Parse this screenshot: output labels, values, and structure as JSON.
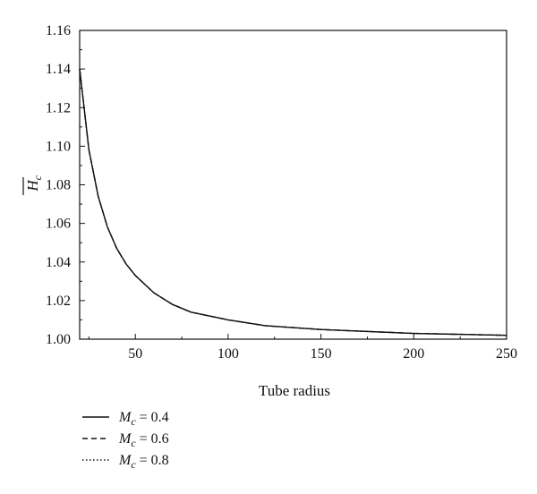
{
  "chart_data": {
    "type": "line",
    "xlabel": "Tube radius",
    "ylabel": "H",
    "ylabel_subscript": "c",
    "xlim": [
      20,
      250
    ],
    "ylim": [
      1.0,
      1.16
    ],
    "xticks": [
      50,
      100,
      150,
      200,
      250
    ],
    "yticks": [
      1.0,
      1.02,
      1.04,
      1.06,
      1.08,
      1.1,
      1.12,
      1.14,
      1.16
    ],
    "x": [
      20,
      25,
      30,
      35,
      40,
      45,
      50,
      60,
      70,
      80,
      90,
      100,
      120,
      150,
      175,
      200,
      225,
      250
    ],
    "series": [
      {
        "name_var": "M",
        "name_sub": "c",
        "name_rest": " = 0.4",
        "style": "solid",
        "values": [
          1.14,
          1.098,
          1.074,
          1.058,
          1.047,
          1.039,
          1.033,
          1.024,
          1.018,
          1.014,
          1.012,
          1.01,
          1.007,
          1.005,
          1.004,
          1.003,
          1.0025,
          1.002
        ]
      },
      {
        "name_var": "M",
        "name_sub": "c",
        "name_rest": " = 0.6",
        "style": "dashed",
        "values": [
          1.14,
          1.098,
          1.074,
          1.058,
          1.047,
          1.039,
          1.033,
          1.024,
          1.018,
          1.014,
          1.012,
          1.01,
          1.007,
          1.005,
          1.004,
          1.003,
          1.0025,
          1.002
        ]
      },
      {
        "name_var": "M",
        "name_sub": "c",
        "name_rest": " = 0.8",
        "style": "dotted",
        "values": [
          1.14,
          1.098,
          1.074,
          1.058,
          1.047,
          1.039,
          1.033,
          1.024,
          1.018,
          1.014,
          1.012,
          1.01,
          1.007,
          1.005,
          1.004,
          1.003,
          1.0025,
          1.002
        ]
      }
    ],
    "grid": false,
    "legend_position": "bottom-left, below plot"
  }
}
